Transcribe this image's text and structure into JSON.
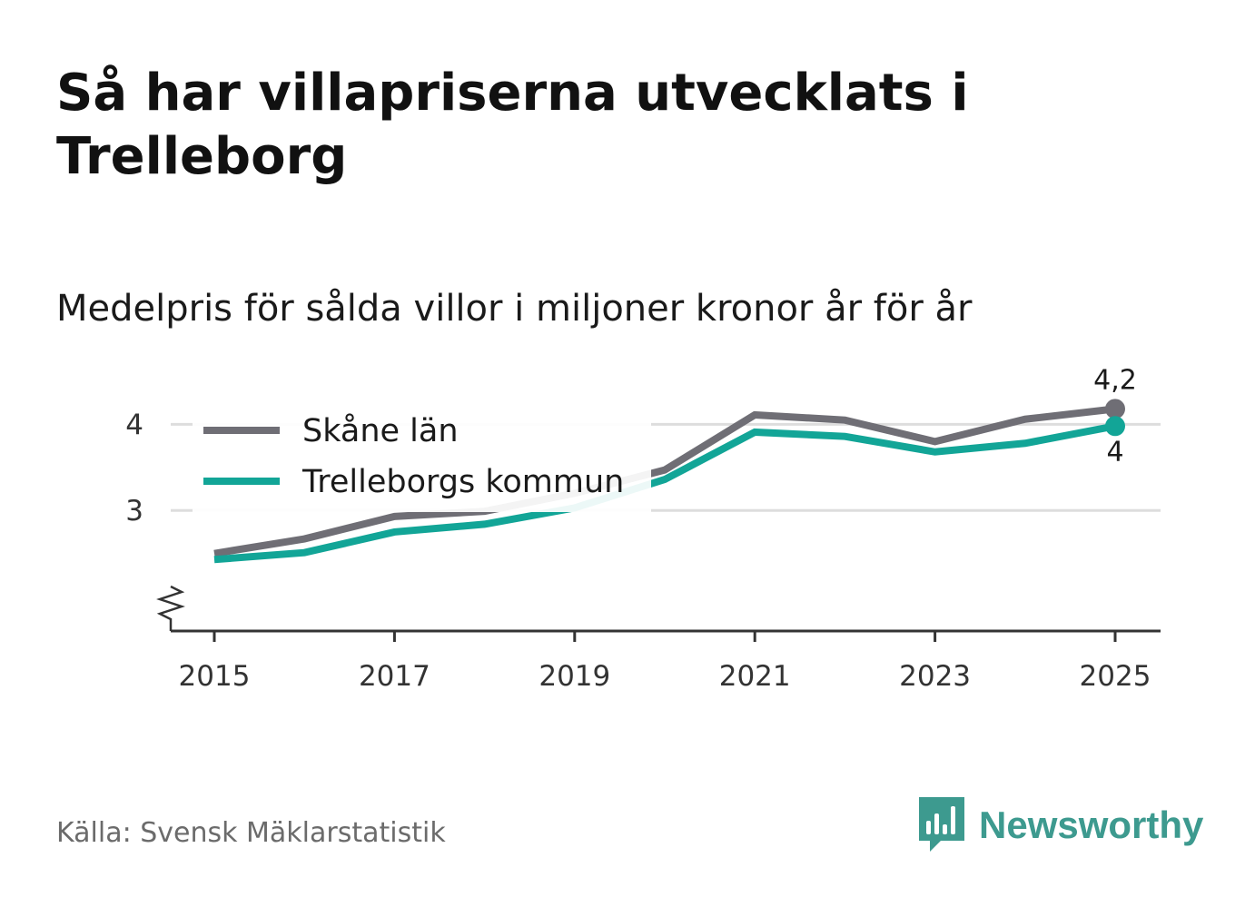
{
  "header": {
    "title": "Så har villapriserna utvecklats i Trelleborg",
    "subtitle": "Medelpris för sålda villor i miljoner kronor år för år"
  },
  "chart_data": {
    "type": "line",
    "x": [
      2015,
      2016,
      2017,
      2018,
      2019,
      2020,
      2021,
      2022,
      2023,
      2024,
      2025
    ],
    "series": [
      {
        "name": "Skåne län",
        "color": "#6f6e75",
        "values": [
          2.5,
          2.67,
          2.93,
          2.99,
          3.2,
          3.47,
          4.11,
          4.05,
          3.8,
          4.06,
          4.18
        ],
        "end_label": "4,2"
      },
      {
        "name": "Trelleborgs kommun",
        "color": "#12a597",
        "values": [
          2.43,
          2.51,
          2.75,
          2.84,
          3.03,
          3.36,
          3.91,
          3.86,
          3.68,
          3.78,
          3.98
        ],
        "end_label": "4"
      }
    ],
    "x_ticks": [
      "2015",
      "2017",
      "2019",
      "2021",
      "2023",
      "2025"
    ],
    "y_ticks": [
      "3",
      "4"
    ],
    "ylim": [
      1.6,
      4.5
    ],
    "xlabel": "",
    "ylabel": "",
    "grid": true,
    "axis_break": true,
    "legend_position": "top-left"
  },
  "footer": {
    "source": "Källa: Svensk Mäklarstatistik",
    "brand": "Newsworthy"
  },
  "colors": {
    "grid": "#dddddd",
    "axis": "#333333",
    "brand": "#3d9a8f"
  }
}
